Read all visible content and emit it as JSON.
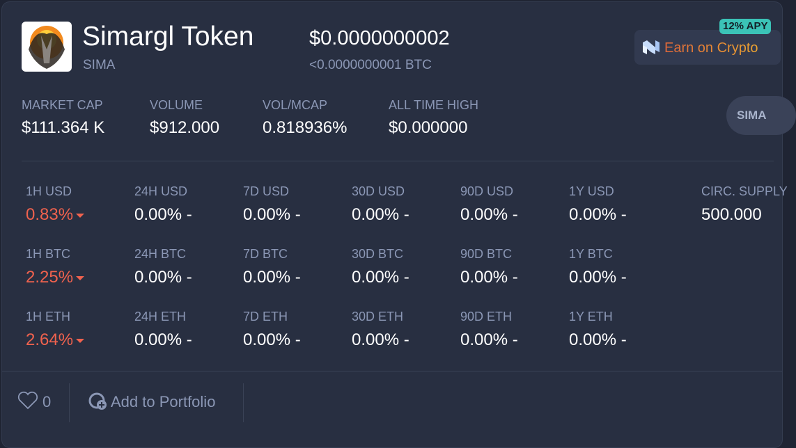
{
  "coin": {
    "name": "Simargl Token",
    "symbol": "SIMA",
    "price_usd": "$0.0000000002",
    "price_btc": "<0.0000000001 BTC"
  },
  "earn": {
    "label": "Earn on Crypto",
    "badge": "12% APY"
  },
  "symbol_pill": "SIMA",
  "stats": [
    {
      "label": "MARKET CAP",
      "value": "$111.364 K"
    },
    {
      "label": "VOLUME",
      "value": "$912.000"
    },
    {
      "label": "VOL/MCAP",
      "value": "0.818936%"
    },
    {
      "label": "ALL TIME HIGH",
      "value": "$0.000000"
    }
  ],
  "performance": [
    [
      {
        "label": "1H USD",
        "value": "0.83%",
        "down": true
      },
      {
        "label": "24H USD",
        "value": "0.00% -"
      },
      {
        "label": "7D USD",
        "value": "0.00% -"
      },
      {
        "label": "30D USD",
        "value": "0.00% -"
      },
      {
        "label": "90D USD",
        "value": "0.00% -"
      },
      {
        "label": "1Y USD",
        "value": "0.00% -"
      }
    ],
    [
      {
        "label": "1H BTC",
        "value": "2.25%",
        "down": true
      },
      {
        "label": "24H BTC",
        "value": "0.00% -"
      },
      {
        "label": "7D BTC",
        "value": "0.00% -"
      },
      {
        "label": "30D BTC",
        "value": "0.00% -"
      },
      {
        "label": "90D BTC",
        "value": "0.00% -"
      },
      {
        "label": "1Y BTC",
        "value": "0.00% -"
      }
    ],
    [
      {
        "label": "1H ETH",
        "value": "2.64%",
        "down": true
      },
      {
        "label": "24H ETH",
        "value": "0.00% -"
      },
      {
        "label": "7D ETH",
        "value": "0.00% -"
      },
      {
        "label": "30D ETH",
        "value": "0.00% -"
      },
      {
        "label": "90D ETH",
        "value": "0.00% -"
      },
      {
        "label": "1Y ETH",
        "value": "0.00% -"
      }
    ]
  ],
  "circ_supply": {
    "label": "CIRC. SUPPLY",
    "value": "500.000"
  },
  "footer": {
    "likes": "0",
    "portfolio": "Add to Portfolio"
  },
  "colors": {
    "negative": "#f0624e",
    "apy_badge": "#3bc3b7",
    "background": "#282f41"
  }
}
